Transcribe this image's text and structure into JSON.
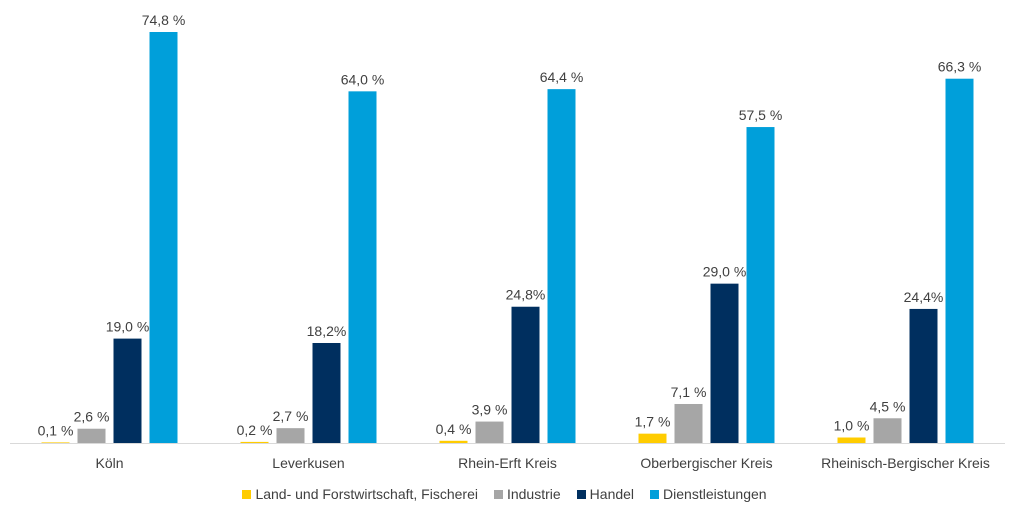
{
  "chart_data": {
    "type": "bar",
    "categories": [
      "Köln",
      "Leverkusen",
      "Rhein-Erft Kreis",
      "Oberbergischer Kreis",
      "Rheinisch-Bergischer Kreis"
    ],
    "series": [
      {
        "name": "Land- und Forstwirtschaft, Fischerei",
        "color": "#FFCC00",
        "values": [
          0.1,
          0.2,
          0.4,
          1.7,
          1.0
        ],
        "labels": [
          "0,1 %",
          "0,2 %",
          "0,4 %",
          "1,7 %",
          "1,0 %"
        ]
      },
      {
        "name": "Industrie",
        "color": "#A6A6A6",
        "values": [
          2.6,
          2.7,
          3.9,
          7.1,
          4.5
        ],
        "labels": [
          "2,6 %",
          "2,7 %",
          "3,9 %",
          "7,1 %",
          "4,5 %"
        ]
      },
      {
        "name": "Handel",
        "color": "#002F5F",
        "values": [
          19.0,
          18.2,
          24.8,
          29.0,
          24.4
        ],
        "labels": [
          "19,0 %",
          "18,2%",
          "24,8%",
          "29,0 %",
          "24,4%"
        ]
      },
      {
        "name": "Dienstleistungen",
        "color": "#009FDA",
        "values": [
          74.8,
          64.0,
          64.4,
          57.5,
          66.3
        ],
        "labels": [
          "74,8 %",
          "64,0 %",
          "64,4 %",
          "57,5 %",
          "66,3 %"
        ]
      }
    ],
    "title": "",
    "xlabel": "",
    "ylabel": "",
    "ylim": [
      0,
      80
    ],
    "grid": false,
    "legend_position": "bottom"
  }
}
